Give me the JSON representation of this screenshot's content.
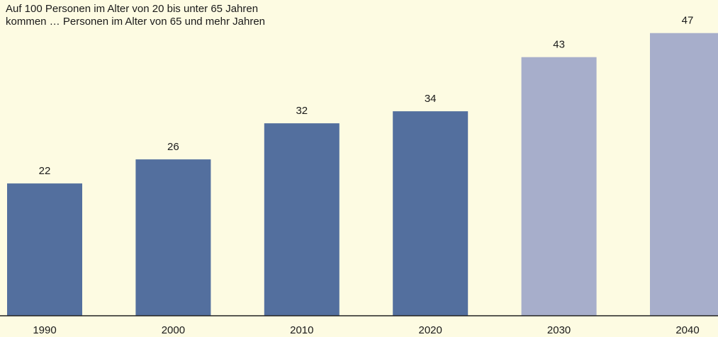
{
  "chart_data": {
    "type": "bar",
    "title": [
      "Auf 100 Personen im Alter von 20 bis unter 65 Jahren",
      "kommen … Personen im Alter von 65 und mehr Jahren"
    ],
    "categories": [
      "1990",
      "2000",
      "2010",
      "2020",
      "2030",
      "2040"
    ],
    "values": [
      22,
      26,
      32,
      34,
      43,
      47
    ],
    "colors": [
      "#536f9e",
      "#536f9e",
      "#536f9e",
      "#536f9e",
      "#a7aecb",
      "#a7aecb"
    ],
    "ylim": [
      0,
      52.5
    ]
  }
}
